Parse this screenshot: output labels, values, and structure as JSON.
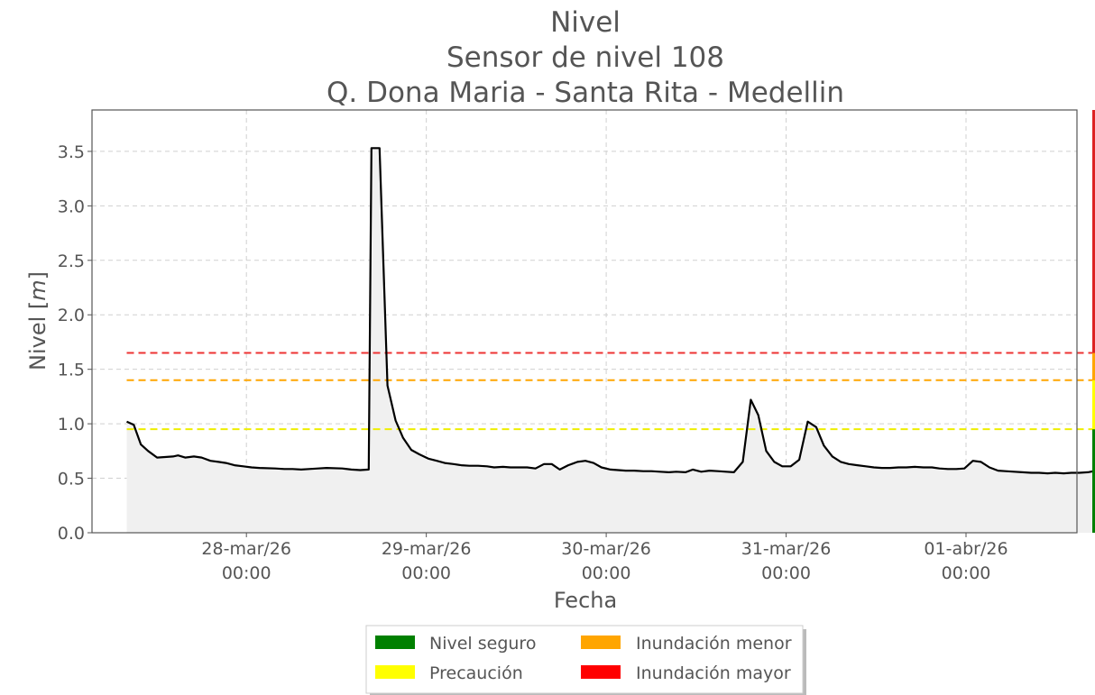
{
  "chart_data": {
    "type": "line",
    "title": [
      "Nivel",
      "Sensor de nivel 108",
      "Q. Dona Maria - Santa Rita - Medellin"
    ],
    "xlabel": "Fecha",
    "ylabel_main": "Nivel [",
    "ylabel_unit": "m",
    "ylabel_end": "]",
    "ylim": [
      0,
      3.88
    ],
    "yticks": [
      0.0,
      0.5,
      1.0,
      1.5,
      2.0,
      2.5,
      3.0,
      3.5
    ],
    "ytick_labels": [
      "0.0",
      "0.5",
      "1.0",
      "1.5",
      "2.0",
      "2.5",
      "3.0",
      "3.5"
    ],
    "xlim": [
      "2026-03-27T03:24",
      "2026-04-01T14:48"
    ],
    "xticks": [
      {
        "date": "2026-03-28T00:00",
        "line1": "28-mar/26",
        "line2": "00:00"
      },
      {
        "date": "2026-03-29T00:00",
        "line1": "29-mar/26",
        "line2": "00:00"
      },
      {
        "date": "2026-03-30T00:00",
        "line1": "30-mar/26",
        "line2": "00:00"
      },
      {
        "date": "2026-03-31T00:00",
        "line1": "31-mar/26",
        "line2": "00:00"
      },
      {
        "date": "2026-04-01T00:00",
        "line1": "01-abr/26",
        "line2": "00:00"
      }
    ],
    "grid": true,
    "series": [
      {
        "color": "#000000",
        "fill": "#f0f0f0",
        "points": [
          [
            "2026-03-27T08:02",
            1.02
          ],
          [
            "2026-03-27T08:58",
            0.99
          ],
          [
            "2026-03-27T09:55",
            0.81
          ],
          [
            "2026-03-27T10:53",
            0.75
          ],
          [
            "2026-03-27T12:05",
            0.69
          ],
          [
            "2026-03-27T14:12",
            0.7
          ],
          [
            "2026-03-27T14:53",
            0.71
          ],
          [
            "2026-03-27T15:50",
            0.69
          ],
          [
            "2026-03-27T17:00",
            0.7
          ],
          [
            "2026-03-27T18:02",
            0.69
          ],
          [
            "2026-03-27T19:12",
            0.66
          ],
          [
            "2026-03-27T20:17",
            0.65
          ],
          [
            "2026-03-27T21:16",
            0.64
          ],
          [
            "2026-03-27T22:24",
            0.62
          ],
          [
            "2026-03-27T23:35",
            0.61
          ],
          [
            "2026-03-28T00:41",
            0.6
          ],
          [
            "2026-03-28T01:45",
            0.595
          ],
          [
            "2026-03-28T03:51",
            0.59
          ],
          [
            "2026-03-28T05:03",
            0.585
          ],
          [
            "2026-03-28T06:10",
            0.585
          ],
          [
            "2026-03-28T07:18",
            0.58
          ],
          [
            "2026-03-28T08:22",
            0.585
          ],
          [
            "2026-03-28T09:33",
            0.59
          ],
          [
            "2026-03-28T10:41",
            0.595
          ],
          [
            "2026-03-28T12:47",
            0.59
          ],
          [
            "2026-03-28T14:00",
            0.58
          ],
          [
            "2026-03-28T15:11",
            0.575
          ],
          [
            "2026-03-28T16:19",
            0.58
          ],
          [
            "2026-03-28T16:41",
            3.53
          ],
          [
            "2026-03-28T17:46",
            3.53
          ],
          [
            "2026-03-28T18:49",
            1.35
          ],
          [
            "2026-03-28T19:54",
            1.03
          ],
          [
            "2026-03-28T20:54",
            0.87
          ],
          [
            "2026-03-28T22:00",
            0.76
          ],
          [
            "2026-03-28T23:04",
            0.72
          ],
          [
            "2026-03-29T00:16",
            0.68
          ],
          [
            "2026-03-29T01:24",
            0.66
          ],
          [
            "2026-03-29T02:27",
            0.64
          ],
          [
            "2026-03-29T03:38",
            0.63
          ],
          [
            "2026-03-29T04:39",
            0.62
          ],
          [
            "2026-03-29T05:44",
            0.615
          ],
          [
            "2026-03-29T06:54",
            0.615
          ],
          [
            "2026-03-29T08:06",
            0.61
          ],
          [
            "2026-03-29T09:03",
            0.6
          ],
          [
            "2026-03-29T10:14",
            0.605
          ],
          [
            "2026-03-29T11:13",
            0.6
          ],
          [
            "2026-03-29T12:26",
            0.6
          ],
          [
            "2026-03-29T13:27",
            0.6
          ],
          [
            "2026-03-29T14:34",
            0.59
          ],
          [
            "2026-03-29T15:42",
            0.63
          ],
          [
            "2026-03-29T16:44",
            0.63
          ],
          [
            "2026-03-29T17:48",
            0.58
          ],
          [
            "2026-03-29T18:56",
            0.62
          ],
          [
            "2026-03-29T20:10",
            0.65
          ],
          [
            "2026-03-29T21:13",
            0.66
          ],
          [
            "2026-03-29T22:18",
            0.64
          ],
          [
            "2026-03-29T23:22",
            0.6
          ],
          [
            "2026-03-30T00:34",
            0.58
          ],
          [
            "2026-03-30T01:35",
            0.575
          ],
          [
            "2026-03-30T02:37",
            0.57
          ],
          [
            "2026-03-30T03:44",
            0.57
          ],
          [
            "2026-03-30T04:56",
            0.565
          ],
          [
            "2026-03-30T06:02",
            0.565
          ],
          [
            "2026-03-30T07:11",
            0.56
          ],
          [
            "2026-03-30T08:22",
            0.555
          ],
          [
            "2026-03-30T09:20",
            0.56
          ],
          [
            "2026-03-30T10:35",
            0.555
          ],
          [
            "2026-03-30T11:34",
            0.58
          ],
          [
            "2026-03-30T12:40",
            0.56
          ],
          [
            "2026-03-30T13:47",
            0.57
          ],
          [
            "2026-03-30T14:56",
            0.565
          ],
          [
            "2026-03-30T15:59",
            0.56
          ],
          [
            "2026-03-30T17:02",
            0.555
          ],
          [
            "2026-03-30T18:13",
            0.65
          ],
          [
            "2026-03-30T19:17",
            1.22
          ],
          [
            "2026-03-30T20:17",
            1.08
          ],
          [
            "2026-03-30T21:21",
            0.75
          ],
          [
            "2026-03-30T22:25",
            0.65
          ],
          [
            "2026-03-30T23:29",
            0.61
          ],
          [
            "2026-03-31T00:37",
            0.61
          ],
          [
            "2026-03-31T01:45",
            0.67
          ],
          [
            "2026-03-31T02:53",
            1.02
          ],
          [
            "2026-03-31T04:01",
            0.97
          ],
          [
            "2026-03-31T05:02",
            0.8
          ],
          [
            "2026-03-31T06:10",
            0.7
          ],
          [
            "2026-03-31T07:18",
            0.65
          ],
          [
            "2026-03-31T08:22",
            0.63
          ],
          [
            "2026-03-31T09:30",
            0.62
          ],
          [
            "2026-03-31T10:38",
            0.61
          ],
          [
            "2026-03-31T11:43",
            0.6
          ],
          [
            "2026-03-31T12:47",
            0.595
          ],
          [
            "2026-03-31T13:51",
            0.595
          ],
          [
            "2026-03-31T14:59",
            0.6
          ],
          [
            "2026-03-31T16:03",
            0.6
          ],
          [
            "2026-03-31T17:11",
            0.605
          ],
          [
            "2026-03-31T18:19",
            0.6
          ],
          [
            "2026-03-31T19:27",
            0.6
          ],
          [
            "2026-03-31T20:28",
            0.59
          ],
          [
            "2026-03-31T21:35",
            0.585
          ],
          [
            "2026-03-31T22:43",
            0.585
          ],
          [
            "2026-03-31T23:47",
            0.59
          ],
          [
            "2026-04-01T00:55",
            0.66
          ],
          [
            "2026-04-01T02:00",
            0.65
          ],
          [
            "2026-04-01T03:08",
            0.6
          ],
          [
            "2026-04-01T04:16",
            0.57
          ],
          [
            "2026-04-01T05:17",
            0.565
          ],
          [
            "2026-04-01T06:25",
            0.56
          ],
          [
            "2026-04-01T07:32",
            0.555
          ],
          [
            "2026-04-01T08:41",
            0.55
          ],
          [
            "2026-04-01T09:45",
            0.55
          ],
          [
            "2026-04-01T10:53",
            0.545
          ],
          [
            "2026-04-01T11:54",
            0.55
          ],
          [
            "2026-04-01T13:02",
            0.545
          ],
          [
            "2026-04-01T14:03",
            0.55
          ],
          [
            "2026-04-01T15:07",
            0.55
          ],
          [
            "2026-04-01T16:15",
            0.555
          ],
          [
            "2026-04-01T17:21",
            0.57
          ],
          [
            "2026-04-01T18:20",
            0.56
          ]
        ]
      }
    ],
    "thresholds": [
      {
        "name": "Inundación mayor",
        "value": 1.65,
        "color": "#ee3333"
      },
      {
        "name": "Inundación menor",
        "value": 1.4,
        "color": "#ffa500"
      },
      {
        "name": "Precaución",
        "value": 0.95,
        "color": "#eeee00"
      }
    ],
    "side_bar_bands": [
      {
        "from": 0.0,
        "to": 0.95,
        "color": "#008000"
      },
      {
        "from": 0.95,
        "to": 1.4,
        "color": "#ffff00"
      },
      {
        "from": 1.4,
        "to": 1.65,
        "color": "#ffa500"
      },
      {
        "from": 1.65,
        "to": 3.88,
        "color": "#dd2222"
      }
    ],
    "legend": {
      "position": "bottom-center",
      "items": [
        {
          "name": "Nivel seguro",
          "color": "#008000"
        },
        {
          "name": "Precaución",
          "color": "#ffff00"
        },
        {
          "name": "Inundación menor",
          "color": "#ffa500"
        },
        {
          "name": "Inundación mayor",
          "color": "#ff0000"
        }
      ]
    }
  }
}
